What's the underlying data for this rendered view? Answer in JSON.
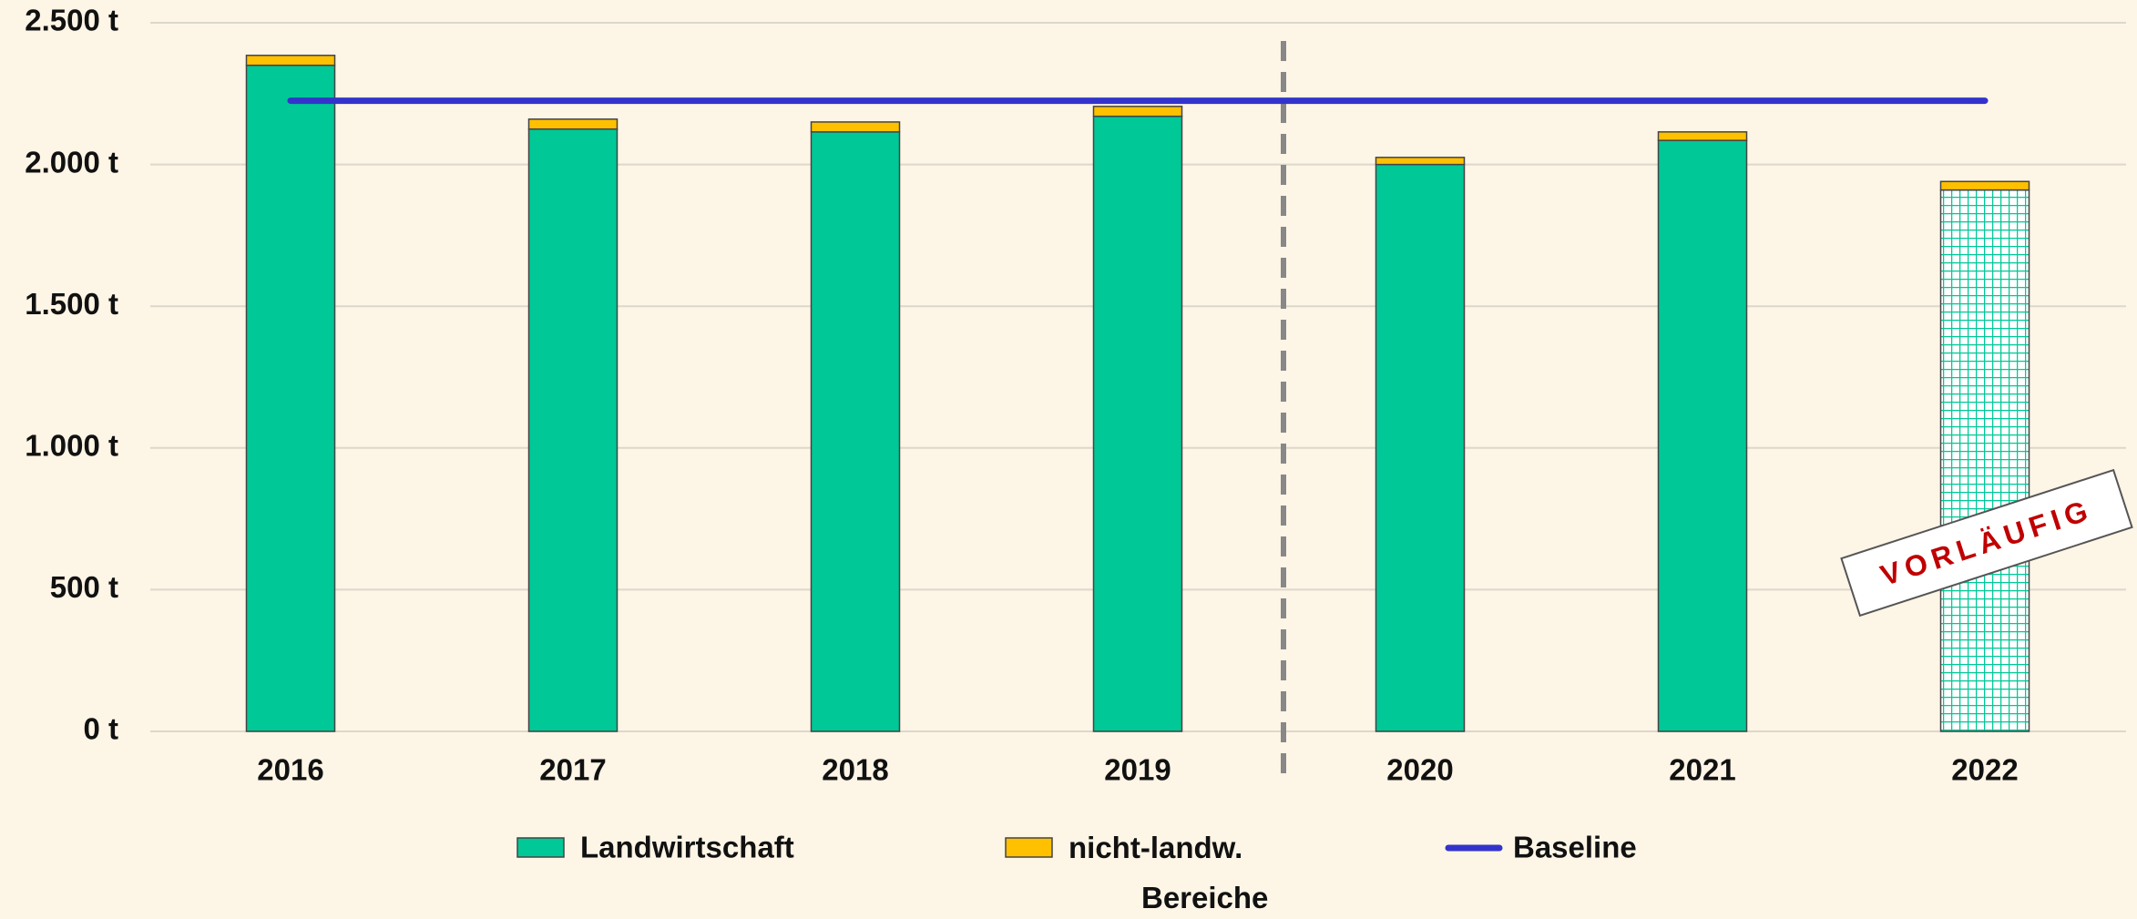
{
  "chart_data": {
    "type": "bar",
    "stacked": true,
    "categories": [
      "2016",
      "2017",
      "2018",
      "2019",
      "2020",
      "2021",
      "2022"
    ],
    "series": [
      {
        "name": "Landwirtschaft",
        "color": "#00c896",
        "values": [
          2350,
          2125,
          2115,
          2170,
          2000,
          2085,
          1910
        ]
      },
      {
        "name": "nicht-landw. Bereiche",
        "color": "#ffc000",
        "values": [
          35,
          35,
          35,
          35,
          25,
          30,
          30
        ]
      },
      {
        "name": "Baseline",
        "type": "line",
        "color": "#3333cc",
        "values": [
          2225,
          2225,
          2225,
          2225,
          2225,
          2225,
          2225
        ]
      }
    ],
    "hatched": [
      false,
      false,
      false,
      false,
      false,
      false,
      true
    ],
    "annotation": "VORLÄUFIG",
    "ylim": [
      0,
      2500
    ],
    "yticks": [
      {
        "value": 0,
        "label": "0 t"
      },
      {
        "value": 500,
        "label": "500 t"
      },
      {
        "value": 1000,
        "label": "1.000 t"
      },
      {
        "value": 1500,
        "label": "1.500 t"
      },
      {
        "value": 2000,
        "label": "2.000 t"
      },
      {
        "value": 2500,
        "label": "2.500 t"
      }
    ],
    "grid": true,
    "legend": "bottom"
  }
}
